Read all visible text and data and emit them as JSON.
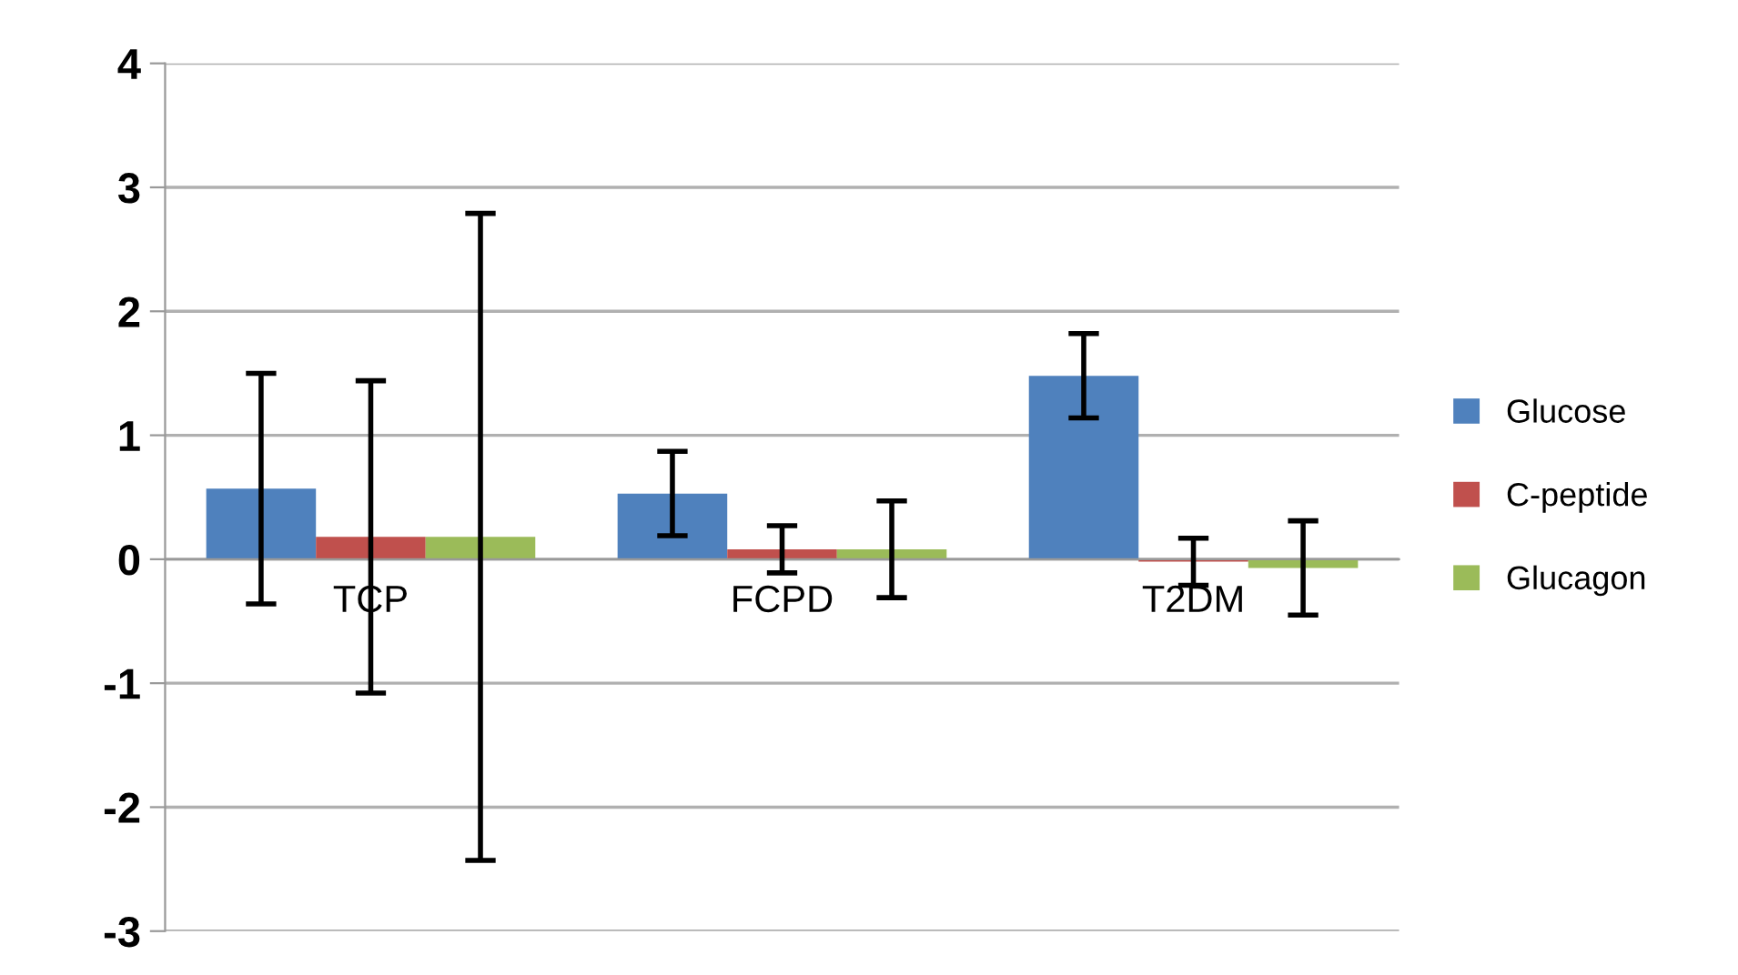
{
  "chart_data": {
    "type": "bar",
    "categories": [
      "TCP",
      "FCPD",
      "T2DM"
    ],
    "series": [
      {
        "name": "Glucose",
        "color": "#4f81bd",
        "values": [
          0.57,
          0.53,
          1.48
        ],
        "errors": [
          0.93,
          0.34,
          0.34
        ]
      },
      {
        "name": "C-peptide",
        "color": "#c0504d",
        "values": [
          0.18,
          0.08,
          -0.02
        ],
        "errors": [
          1.26,
          0.19,
          0.19
        ]
      },
      {
        "name": "Glucagon",
        "color": "#9bbb59",
        "values": [
          0.18,
          0.08,
          -0.07
        ],
        "errors": [
          2.61,
          0.39,
          0.38
        ]
      }
    ],
    "ylim": [
      -3,
      4
    ],
    "yticks": [
      -3,
      -2,
      -1,
      0,
      1,
      2,
      3,
      4
    ],
    "grid": "y",
    "legend": "right"
  }
}
